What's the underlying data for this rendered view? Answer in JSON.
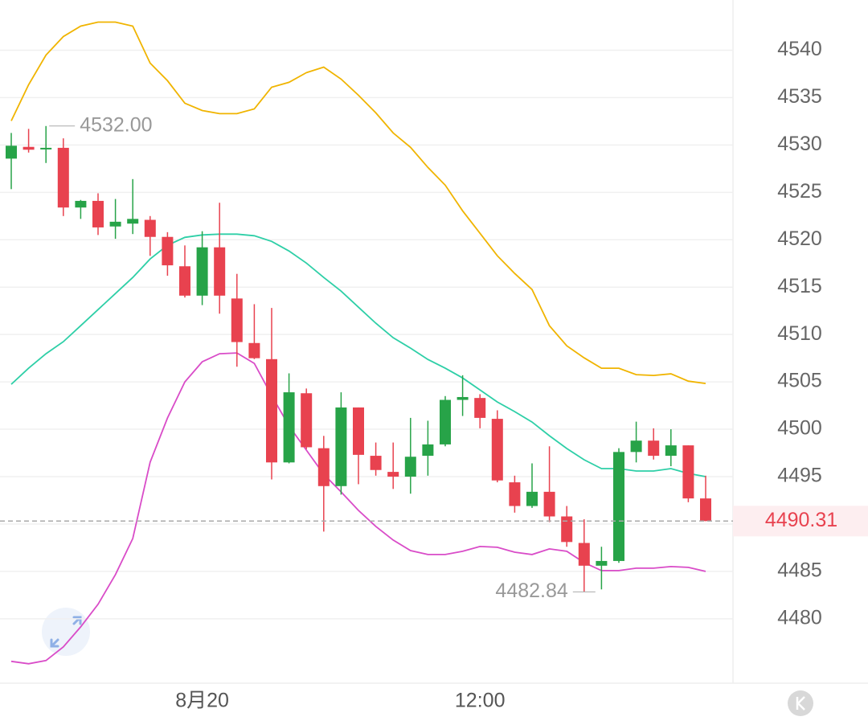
{
  "chart_data": {
    "type": "candlestick",
    "categories": [
      null,
      null,
      null,
      null,
      null,
      null,
      null,
      null,
      null,
      null,
      null,
      "8月20",
      null,
      null,
      null,
      null,
      null,
      null,
      null,
      null,
      null,
      null,
      null,
      null,
      null,
      null,
      null,
      "12:00",
      null,
      null,
      null,
      null,
      null,
      null,
      null,
      null,
      null,
      null,
      null,
      null,
      null
    ],
    "open": [
      4528.56,
      4529.8,
      4529.6,
      4529.7,
      4523.4,
      4524.1,
      4521.4,
      4521.7,
      4522.1,
      4520.3,
      4517.2,
      4514.1,
      4519.2,
      4513.8,
      4509.1,
      4507.4,
      4496.5,
      4503.8,
      4498.0,
      4494.0,
      4502.3,
      4497.2,
      4495.5,
      4495.0,
      4497.2,
      4498.4,
      4503.1,
      4503.3,
      4501.1,
      4494.4,
      4491.9,
      4493.4,
      4490.8,
      4488.0,
      4485.6,
      4486.1,
      4497.6,
      4498.8,
      4497.2,
      4498.3,
      4492.7
    ],
    "high": [
      4531.27,
      4531.7,
      4532,
      4530.7,
      4524.2,
      4524.9,
      4524.3,
      4526.4,
      4522.5,
      4520.8,
      4519.4,
      4520.9,
      4523.9,
      4516.4,
      4513.2,
      4512.8,
      4505.9,
      4504.3,
      4499.3,
      4503.9,
      4502.3,
      4498.6,
      4498.6,
      4501.2,
      4500.9,
      4503.5,
      4505.7,
      4503.7,
      4502.0,
      4495.1,
      4496.4,
      4498.2,
      4491.9,
      4490.5,
      4487.6,
      4498.0,
      4500.8,
      4500.1,
      4500.0,
      4498.3,
      4495.1
    ],
    "low": [
      4525.34,
      4529.2,
      4528.1,
      4522.5,
      4522.2,
      4520.5,
      4520.1,
      4520.6,
      4518.3,
      4516.2,
      4513.9,
      4513.1,
      4512.2,
      4506.6,
      4507.4,
      4494.7,
      4496.4,
      4497.9,
      4489.2,
      4493.1,
      4494.2,
      4495.1,
      4493.7,
      4493.2,
      4495.1,
      4498.2,
      4501.4,
      4500.1,
      4494.4,
      4491.2,
      4491.7,
      4490.2,
      4487.6,
      4482.84,
      4483.1,
      4485.9,
      4496.5,
      4496.8,
      4496.1,
      4492.3,
      4490.3
    ],
    "close": [
      4529.92,
      4529.5,
      4529.7,
      4523.4,
      4524.1,
      4521.3,
      4521.9,
      4522.2,
      4520.3,
      4517.3,
      4514.1,
      4519.2,
      4514.1,
      4509.2,
      4507.5,
      4496.5,
      4503.9,
      4498.1,
      4494.0,
      4502.3,
      4497.3,
      4495.7,
      4495.0,
      4497.1,
      4498.4,
      4503.1,
      4503.4,
      4501.2,
      4494.6,
      4491.9,
      4493.4,
      4490.8,
      4488.1,
      4485.6,
      4486.1,
      4497.6,
      4498.8,
      4497.2,
      4498.3,
      4492.7,
      4490.31
    ],
    "up_color": "#27a348",
    "down_color": "#e8424f",
    "lines": [
      {
        "color": "#f0b400",
        "values": [
          4532.54,
          4536.36,
          4539.49,
          4541.44,
          4542.54,
          4542.97,
          4542.97,
          4542.54,
          4538.64,
          4536.78,
          4534.41,
          4533.64,
          4533.31,
          4533.31,
          4533.81,
          4536.1,
          4536.61,
          4537.63,
          4538.22,
          4536.95,
          4535.25,
          4533.39,
          4531.27,
          4529.75,
          4527.63,
          4525.76,
          4523.05,
          4520.68,
          4518.31,
          4516.44,
          4514.75,
          4510.93,
          4508.81,
          4507.54,
          4506.44,
          4506.44,
          4505.76,
          4505.68,
          4505.85,
          4505.08,
          4504.83
        ]
      },
      {
        "color": "#2ecfa7",
        "values": [
          4504.75,
          4506.44,
          4507.97,
          4509.24,
          4510.93,
          4512.63,
          4514.32,
          4516.02,
          4517.97,
          4519.41,
          4520.25,
          4520.51,
          4520.59,
          4520.59,
          4520.42,
          4519.83,
          4518.81,
          4517.54,
          4516.02,
          4514.58,
          4512.88,
          4511.19,
          4509.66,
          4508.56,
          4507.37,
          4506.44,
          4505.42,
          4504.15,
          4502.88,
          4501.86,
          4500.76,
          4499.32,
          4497.97,
          4496.78,
          4495.85,
          4495.85,
          4495.59,
          4495.59,
          4495.85,
          4495.34,
          4495.0
        ]
      },
      {
        "color": "#d94cc8",
        "values": [
          4475.51,
          4475.25,
          4475.59,
          4477.03,
          4479.15,
          4481.53,
          4484.66,
          4488.47,
          4496.53,
          4501.19,
          4505.0,
          4507.12,
          4507.97,
          4508.05,
          4506.95,
          4503.56,
          4500.34,
          4497.8,
          4495.25,
          4493.39,
          4491.44,
          4489.75,
          4488.31,
          4487.2,
          4486.78,
          4486.78,
          4487.12,
          4487.63,
          4487.54,
          4487.03,
          4486.78,
          4487.37,
          4487.12,
          4485.93,
          4485.08,
          4485.08,
          4485.34,
          4485.34,
          4485.51,
          4485.42,
          4485.0
        ]
      }
    ],
    "ylim": [
      4473.2,
      4545.3
    ],
    "yticks": [
      4480,
      4485,
      4490,
      4495,
      4500,
      4505,
      4510,
      4515,
      4520,
      4525,
      4530,
      4535,
      4540
    ],
    "grid": true,
    "max_label": {
      "value": 4532,
      "label": "4532.00"
    },
    "min_label": 4482.84,
    "last_price": 4490.31
  }
}
